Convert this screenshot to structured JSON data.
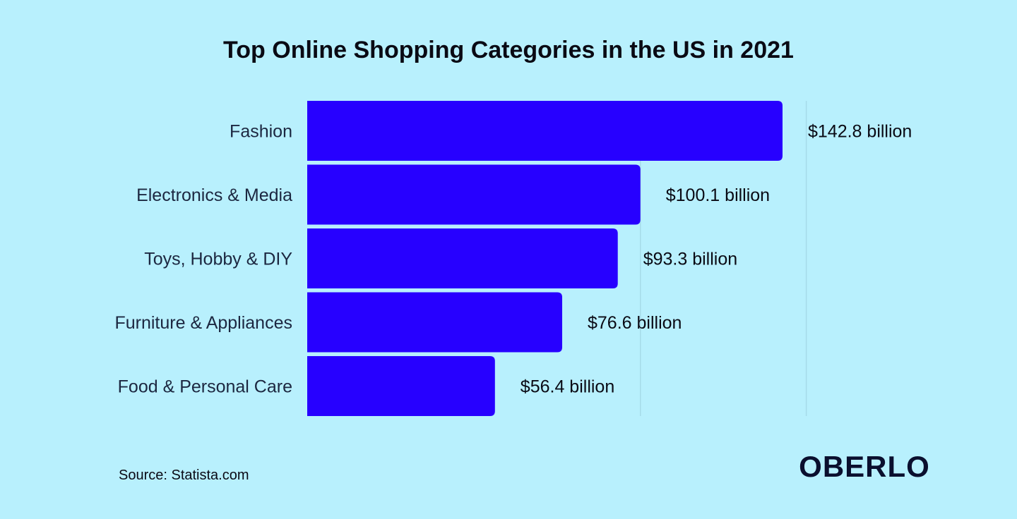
{
  "chart_data": {
    "type": "bar",
    "orientation": "horizontal",
    "title": "Top Online Shopping Categories in the US in 2021",
    "categories": [
      "Fashion",
      "Electronics & Media",
      "Toys, Hobby & DIY",
      "Furniture & Appliances",
      "Food & Personal Care"
    ],
    "values": [
      142.8,
      100.1,
      93.3,
      76.6,
      56.4
    ],
    "value_labels": [
      "$142.8 billion",
      "$100.1 billion",
      "$93.3 billion",
      "$76.6 billion",
      "$56.4 billion"
    ],
    "unit": "billion USD",
    "xlim": [
      0,
      150
    ],
    "grid": true,
    "legend": "none",
    "bar_color": "#2700ff",
    "background_color": "#b8f0fd"
  },
  "source": "Source: Statista.com",
  "logo_text": "OBERLO"
}
